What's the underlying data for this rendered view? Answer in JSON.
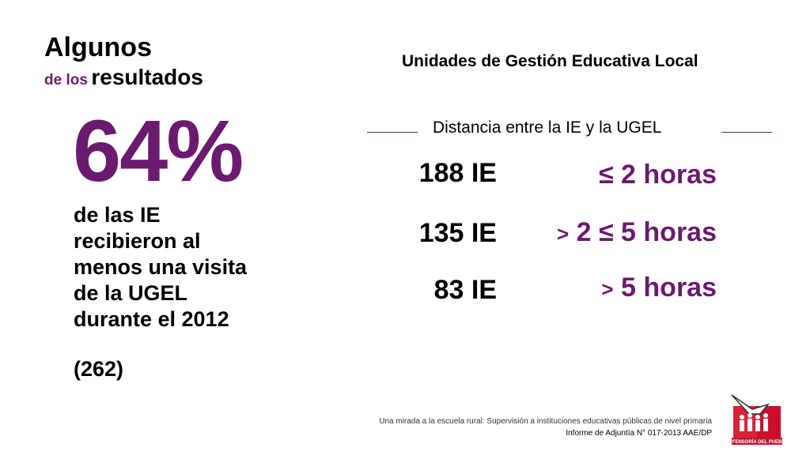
{
  "heading": {
    "line1": "Algunos",
    "line2_small": "de los",
    "line2_big": "resultados"
  },
  "highlight": {
    "percentage": "64%",
    "description_lines": [
      "de las IE",
      "recibieron al",
      "menos una visita",
      "de la UGEL",
      "durante el 2012"
    ],
    "count": "(262)"
  },
  "ugel": {
    "title": "Unidades de Gestión Educativa Local",
    "distance_label": "Distancia entre la IE y la UGEL",
    "rows": [
      {
        "count": "188 IE",
        "prefix": "",
        "range": "≤ 2 horas"
      },
      {
        "count": "135 IE",
        "prefix": ">",
        "range": "2 ≤ 5 horas"
      },
      {
        "count": "83 IE",
        "prefix": ">",
        "range": "5 horas"
      }
    ]
  },
  "footer": {
    "line1": "Una mirada a la escuela rural: Supervisión a instituciones educativas públicas de nivel primaria",
    "line2": "Informe de Adjuntía N° 017-2013 AAE/DP"
  },
  "logo": {
    "text": "DEFENSORÍA DEL PUEBLO",
    "accent_color": "#c8102e"
  },
  "colors": {
    "accent": "#6b1a6f",
    "text": "#000000",
    "background": "#ffffff"
  }
}
